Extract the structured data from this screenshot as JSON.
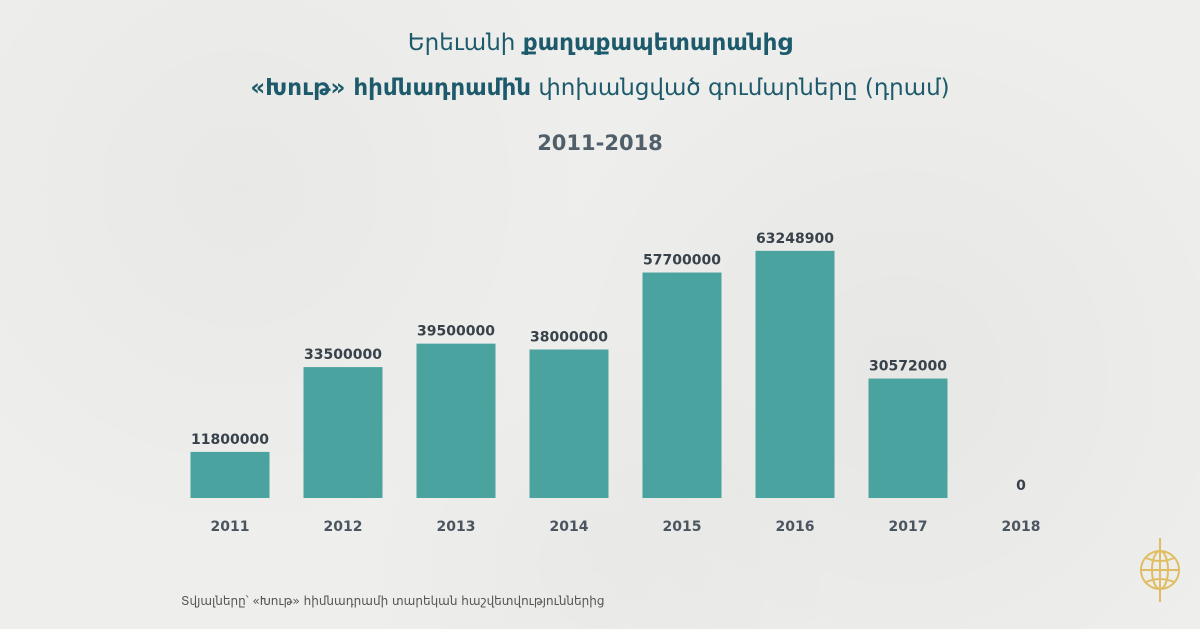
{
  "title": {
    "line1_plain": "Երեւանի",
    "line1_bold": "քաղաքապետարանից",
    "line2_bold": "«Խութ» հիմնադրամին",
    "line2_plain": "փոխանցված գումարները (դրամ)"
  },
  "subtitle": "2011-2018",
  "source_note": "Տվյալները՝ «Խութ» հիմնադրամի տարեկան հաշվետվություններից",
  "colors": {
    "bar": "#4aa39e",
    "title": "#1d5a6b",
    "labels": "#37424a",
    "logo": "#e0bd62"
  },
  "logo": {
    "icon": "globe-emblem-icon"
  },
  "chart_data": {
    "type": "bar",
    "categories": [
      "2011",
      "2012",
      "2013",
      "2014",
      "2015",
      "2016",
      "2017",
      "2018"
    ],
    "values": [
      11800000,
      33500000,
      39500000,
      38000000,
      57700000,
      63248900,
      30572000,
      0
    ],
    "data_labels": [
      "11800000",
      "33500000",
      "39500000",
      "38000000",
      "57700000",
      "63248900",
      "30572000",
      "0"
    ],
    "ylim": [
      0,
      65000000
    ],
    "grid": false,
    "legend": "none"
  }
}
